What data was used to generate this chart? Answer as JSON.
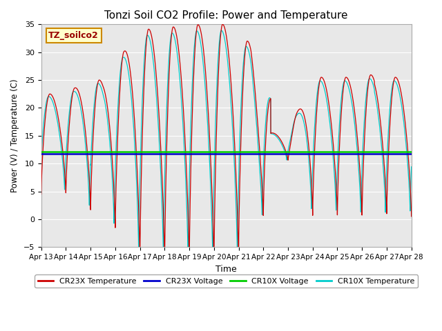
{
  "title": "Tonzi Soil CO2 Profile: Power and Temperature",
  "xlabel": "Time",
  "ylabel": "Power (V) / Temperature (C)",
  "ylim": [
    -5,
    35
  ],
  "yticks": [
    -5,
    0,
    5,
    10,
    15,
    20,
    25,
    30,
    35
  ],
  "xlim": [
    0,
    15
  ],
  "x_tick_labels": [
    "Apr 13",
    "Apr 14",
    "Apr 15",
    "Apr 16",
    "Apr 17",
    "Apr 18",
    "Apr 19",
    "Apr 20",
    "Apr 21",
    "Apr 22",
    "Apr 23",
    "Apr 24",
    "Apr 25",
    "Apr 26",
    "Apr 27",
    "Apr 28"
  ],
  "cr23x_voltage": 11.8,
  "cr10x_voltage": 12.1,
  "cr23x_voltage_color": "#0000cc",
  "cr10x_voltage_color": "#00cc00",
  "cr23x_temp_color": "#cc0000",
  "cr10x_temp_color": "#00cccc",
  "plot_bg_color": "#e8e8e8",
  "label_box_color": "#ffffcc",
  "label_box_edge": "#cc8800",
  "label_text": "TZ_soilco2",
  "legend_labels": [
    "CR23X Temperature",
    "CR23X Voltage",
    "CR10X Voltage",
    "CR10X Temperature"
  ]
}
